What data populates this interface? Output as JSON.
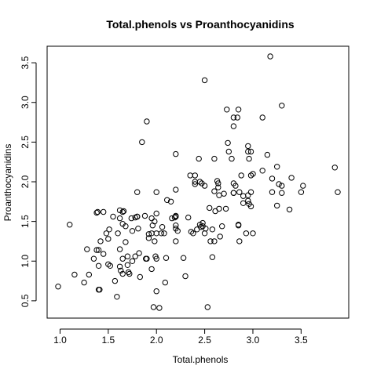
{
  "chart_data": {
    "type": "scatter",
    "title": "Total.phenols vs Proanthocyanidins",
    "xlabel": "Total.phenols",
    "ylabel": "Proanthocyanidins",
    "xlim": [
      0.98,
      3.88
    ],
    "ylim": [
      0.41,
      3.58
    ],
    "xticks": [
      1.0,
      1.5,
      2.0,
      2.5,
      3.0,
      3.5
    ],
    "xtick_labels": [
      "1.0",
      "1.5",
      "2.0",
      "2.5",
      "3.0",
      "3.5"
    ],
    "yticks": [
      0.5,
      1.0,
      1.5,
      2.0,
      2.5,
      3.0,
      3.5
    ],
    "ytick_labels": [
      "0.5",
      "1.0",
      "1.5",
      "2.0",
      "2.5",
      "3.0",
      "3.5"
    ],
    "grid": false,
    "marker": "open-circle",
    "points": [
      [
        0.98,
        0.68
      ],
      [
        1.1,
        1.46
      ],
      [
        1.15,
        0.83
      ],
      [
        1.25,
        0.73
      ],
      [
        1.28,
        1.15
      ],
      [
        1.3,
        0.83
      ],
      [
        1.35,
        1.03
      ],
      [
        1.38,
        1.61
      ],
      [
        1.39,
        1.62
      ],
      [
        1.38,
        1.14
      ],
      [
        1.4,
        1.14
      ],
      [
        1.4,
        0.94
      ],
      [
        1.4,
        0.64
      ],
      [
        1.41,
        0.64
      ],
      [
        1.42,
        1.25
      ],
      [
        1.45,
        1.62
      ],
      [
        1.48,
        1.35
      ],
      [
        1.45,
        1.09
      ],
      [
        1.5,
        1.28
      ],
      [
        1.51,
        1.4
      ],
      [
        1.5,
        0.96
      ],
      [
        1.52,
        0.94
      ],
      [
        1.55,
        1.56
      ],
      [
        1.57,
        0.75
      ],
      [
        1.59,
        0.55
      ],
      [
        1.6,
        1.35
      ],
      [
        1.62,
        1.64
      ],
      [
        1.62,
        1.54
      ],
      [
        1.62,
        1.15
      ],
      [
        1.62,
        0.93
      ],
      [
        1.63,
        0.88
      ],
      [
        1.65,
        1.62
      ],
      [
        1.65,
        1.47
      ],
      [
        1.66,
        1.63
      ],
      [
        1.65,
        1.03
      ],
      [
        1.65,
        0.84
      ],
      [
        1.68,
        1.44
      ],
      [
        1.68,
        1.24
      ],
      [
        1.7,
        1.06
      ],
      [
        1.7,
        0.95
      ],
      [
        1.71,
        0.86
      ],
      [
        1.72,
        0.84
      ],
      [
        1.74,
        1.54
      ],
      [
        1.75,
        1.38
      ],
      [
        1.75,
        1.0
      ],
      [
        1.78,
        1.55
      ],
      [
        1.78,
        1.06
      ],
      [
        1.8,
        1.87
      ],
      [
        1.8,
        1.56
      ],
      [
        1.8,
        1.56
      ],
      [
        1.81,
        1.41
      ],
      [
        1.82,
        1.1
      ],
      [
        1.83,
        0.8
      ],
      [
        1.85,
        2.5
      ],
      [
        1.88,
        1.57
      ],
      [
        1.89,
        1.03
      ],
      [
        1.9,
        2.76
      ],
      [
        1.9,
        1.03
      ],
      [
        1.92,
        1.34
      ],
      [
        1.92,
        1.29
      ],
      [
        1.95,
        1.54
      ],
      [
        1.95,
        1.35
      ],
      [
        1.95,
        0.9
      ],
      [
        1.96,
        1.45
      ],
      [
        1.97,
        0.42
      ],
      [
        1.98,
        1.5
      ],
      [
        1.98,
        1.25
      ],
      [
        1.99,
        1.06
      ],
      [
        2.0,
        1.87
      ],
      [
        2.0,
        1.6
      ],
      [
        2.0,
        1.35
      ],
      [
        2.0,
        1.03
      ],
      [
        2.0,
        0.62
      ],
      [
        2.03,
        0.41
      ],
      [
        2.06,
        1.43
      ],
      [
        2.05,
        1.35
      ],
      [
        2.08,
        1.35
      ],
      [
        2.09,
        0.73
      ],
      [
        2.1,
        1.04
      ],
      [
        2.11,
        1.77
      ],
      [
        2.15,
        1.75
      ],
      [
        2.16,
        1.54
      ],
      [
        2.19,
        1.55
      ],
      [
        2.2,
        2.35
      ],
      [
        2.2,
        1.9
      ],
      [
        2.2,
        1.57
      ],
      [
        2.2,
        1.56
      ],
      [
        2.2,
        1.45
      ],
      [
        2.2,
        1.41
      ],
      [
        2.2,
        1.25
      ],
      [
        2.22,
        1.38
      ],
      [
        2.28,
        1.04
      ],
      [
        2.3,
        0.81
      ],
      [
        2.33,
        1.55
      ],
      [
        2.35,
        2.08
      ],
      [
        2.36,
        1.37
      ],
      [
        2.38,
        1.35
      ],
      [
        2.4,
        2.08
      ],
      [
        2.4,
        2.0
      ],
      [
        2.4,
        1.97
      ],
      [
        2.42,
        1.4
      ],
      [
        2.44,
        2.29
      ],
      [
        2.45,
        2.0
      ],
      [
        2.45,
        1.46
      ],
      [
        2.46,
        1.43
      ],
      [
        2.47,
        1.98
      ],
      [
        2.48,
        1.44
      ],
      [
        2.48,
        1.48
      ],
      [
        2.5,
        3.28
      ],
      [
        2.5,
        1.95
      ],
      [
        2.5,
        1.35
      ],
      [
        2.51,
        1.41
      ],
      [
        2.53,
        0.42
      ],
      [
        2.55,
        1.67
      ],
      [
        2.56,
        1.25
      ],
      [
        2.58,
        1.4
      ],
      [
        2.58,
        1.05
      ],
      [
        2.6,
        2.29
      ],
      [
        2.6,
        1.88
      ],
      [
        2.61,
        1.63
      ],
      [
        2.6,
        1.25
      ],
      [
        2.63,
        2.01
      ],
      [
        2.64,
        1.98
      ],
      [
        2.64,
        1.93
      ],
      [
        2.65,
        1.83
      ],
      [
        2.65,
        1.66
      ],
      [
        2.66,
        1.31
      ],
      [
        2.68,
        1.44
      ],
      [
        2.7,
        1.85
      ],
      [
        2.72,
        1.66
      ],
      [
        2.73,
        2.91
      ],
      [
        2.74,
        2.49
      ],
      [
        2.75,
        2.38
      ],
      [
        2.78,
        2.29
      ],
      [
        2.8,
        2.81
      ],
      [
        2.8,
        2.7
      ],
      [
        2.8,
        1.98
      ],
      [
        2.8,
        1.86
      ],
      [
        2.8,
        1.86
      ],
      [
        2.82,
        1.95
      ],
      [
        2.84,
        2.81
      ],
      [
        2.85,
        2.91
      ],
      [
        2.85,
        1.46
      ],
      [
        2.85,
        1.45
      ],
      [
        2.86,
        1.87
      ],
      [
        2.86,
        1.25
      ],
      [
        2.88,
        2.08
      ],
      [
        2.9,
        1.73
      ],
      [
        2.9,
        1.82
      ],
      [
        2.93,
        1.35
      ],
      [
        2.95,
        2.45
      ],
      [
        2.95,
        2.38
      ],
      [
        2.95,
        1.83
      ],
      [
        2.95,
        1.76
      ],
      [
        2.96,
        2.29
      ],
      [
        2.96,
        1.72
      ],
      [
        2.98,
        2.38
      ],
      [
        2.98,
        2.08
      ],
      [
        2.98,
        1.87
      ],
      [
        2.98,
        1.69
      ],
      [
        3.0,
        2.1
      ],
      [
        3.0,
        1.35
      ],
      [
        3.1,
        2.81
      ],
      [
        3.1,
        2.14
      ],
      [
        3.15,
        2.34
      ],
      [
        3.18,
        3.58
      ],
      [
        3.2,
        2.04
      ],
      [
        3.2,
        1.87
      ],
      [
        3.25,
        2.19
      ],
      [
        3.25,
        1.7
      ],
      [
        3.27,
        1.97
      ],
      [
        3.3,
        2.96
      ],
      [
        3.3,
        1.95
      ],
      [
        3.3,
        1.86
      ],
      [
        3.38,
        1.65
      ],
      [
        3.4,
        2.05
      ],
      [
        3.5,
        1.87
      ],
      [
        3.52,
        1.95
      ],
      [
        3.85,
        2.18
      ],
      [
        3.88,
        1.87
      ]
    ]
  }
}
